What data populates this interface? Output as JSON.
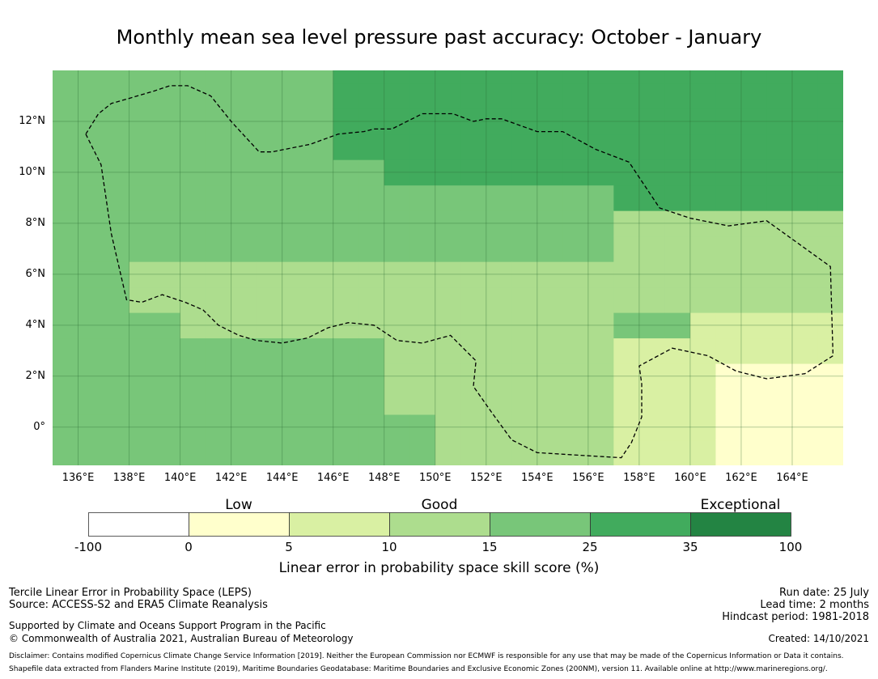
{
  "title": "Monthly mean sea level pressure past accuracy: October - January",
  "map": {
    "lon_range": [
      135,
      166
    ],
    "lat_range": [
      -1.5,
      14
    ],
    "grid_step": 1,
    "lat_ticks": [
      {
        "value": 12,
        "label": "12°N"
      },
      {
        "value": 10,
        "label": "10°N"
      },
      {
        "value": 8,
        "label": "8°N"
      },
      {
        "value": 6,
        "label": "6°N"
      },
      {
        "value": 4,
        "label": "4°N"
      },
      {
        "value": 2,
        "label": "2°N"
      },
      {
        "value": 0,
        "label": "0°"
      }
    ],
    "lon_ticks": [
      {
        "value": 136,
        "label": "136°E"
      },
      {
        "value": 138,
        "label": "138°E"
      },
      {
        "value": 140,
        "label": "140°E"
      },
      {
        "value": 142,
        "label": "142°E"
      },
      {
        "value": 144,
        "label": "144°E"
      },
      {
        "value": 146,
        "label": "146°E"
      },
      {
        "value": 148,
        "label": "148°E"
      },
      {
        "value": 150,
        "label": "150°E"
      },
      {
        "value": 152,
        "label": "152°E"
      },
      {
        "value": 154,
        "label": "154°E"
      },
      {
        "value": 156,
        "label": "156°E"
      },
      {
        "value": 158,
        "label": "158°E"
      },
      {
        "value": 160,
        "label": "160°E"
      },
      {
        "value": 162,
        "label": "162°E"
      },
      {
        "value": 164,
        "label": "164°E"
      }
    ],
    "colors": {
      "below_0": "#ffffff",
      "c0_5": "#ffffcc",
      "c5_10": "#d9f0a3",
      "c10_15": "#addd8e",
      "c15_25": "#78c679",
      "c25_35": "#41ab5d",
      "c35_100": "#238443"
    },
    "eez_boundary": [
      [
        136.3,
        11.5
      ],
      [
        136.9,
        10.3
      ],
      [
        137.3,
        7.6
      ],
      [
        137.9,
        5.0
      ],
      [
        138.5,
        4.9
      ],
      [
        139.3,
        5.2
      ],
      [
        140.2,
        4.9
      ],
      [
        140.9,
        4.6
      ],
      [
        141.5,
        4.0
      ],
      [
        142.3,
        3.6
      ],
      [
        143.0,
        3.4
      ],
      [
        144.0,
        3.3
      ],
      [
        145.0,
        3.5
      ],
      [
        145.8,
        3.9
      ],
      [
        146.6,
        4.1
      ],
      [
        147.6,
        4.0
      ],
      [
        148.5,
        3.4
      ],
      [
        149.5,
        3.3
      ],
      [
        150.6,
        3.6
      ],
      [
        151.2,
        3.0
      ],
      [
        151.6,
        2.6
      ],
      [
        151.5,
        1.6
      ],
      [
        152.2,
        0.6
      ],
      [
        153.0,
        -0.5
      ],
      [
        154.0,
        -1.0
      ],
      [
        155.6,
        -1.1
      ],
      [
        157.3,
        -1.2
      ],
      [
        157.7,
        -0.6
      ],
      [
        158.1,
        0.4
      ],
      [
        158.1,
        1.7
      ],
      [
        158.0,
        2.4
      ],
      [
        159.3,
        3.1
      ],
      [
        160.7,
        2.8
      ],
      [
        161.8,
        2.2
      ],
      [
        163.0,
        1.9
      ],
      [
        164.5,
        2.1
      ],
      [
        165.6,
        2.8
      ],
      [
        165.5,
        6.3
      ],
      [
        163.0,
        8.1
      ],
      [
        161.5,
        7.9
      ],
      [
        160.0,
        8.2
      ],
      [
        158.8,
        8.6
      ],
      [
        157.6,
        10.4
      ],
      [
        156.3,
        10.9
      ],
      [
        155.0,
        11.6
      ],
      [
        154.0,
        11.6
      ],
      [
        152.6,
        12.1
      ],
      [
        152.0,
        12.1
      ],
      [
        151.5,
        12.0
      ],
      [
        150.7,
        12.3
      ],
      [
        149.5,
        12.3
      ],
      [
        148.3,
        11.7
      ],
      [
        147.6,
        11.7
      ],
      [
        147.2,
        11.6
      ],
      [
        146.2,
        11.5
      ],
      [
        145.1,
        11.1
      ],
      [
        143.6,
        10.8
      ],
      [
        143.1,
        10.8
      ],
      [
        142.0,
        12.0
      ],
      [
        141.2,
        13.0
      ],
      [
        140.3,
        13.4
      ],
      [
        139.6,
        13.4
      ],
      [
        139.0,
        13.2
      ],
      [
        138.0,
        12.9
      ],
      [
        137.3,
        12.7
      ],
      [
        136.8,
        12.3
      ],
      [
        136.3,
        11.5
      ]
    ]
  },
  "colorbar": {
    "categories": [
      {
        "label": "Low",
        "lon_anchor": 1
      },
      {
        "label": "Good",
        "lon_anchor": 3
      },
      {
        "label": "Exceptional",
        "lon_anchor": 6
      }
    ],
    "tick_labels": [
      "-100",
      "0",
      "5",
      "10",
      "15",
      "25",
      "35",
      "100"
    ],
    "segment_colors": [
      "#ffffff",
      "#ffffcc",
      "#d9f0a3",
      "#addd8e",
      "#78c679",
      "#41ab5d",
      "#238443"
    ],
    "title": "Linear error in probability space skill score (%)"
  },
  "footer": {
    "left_line1": "Tercile Linear Error in Probability Space (LEPS)",
    "left_line2": "Source: ACCESS-S2 and ERA5 Climate Reanalysis",
    "left_line3": "Supported by Climate and Oceans Support Program in the Pacific",
    "left_line4": "© Commonwealth of Australia 2021, Australian Bureau of Meteorology",
    "right_line1": "Run date: 25 July",
    "right_line2": "Lead time: 2 months",
    "right_line3": "Hindcast period: 1981-2018",
    "right_line4": "Created: 14/10/2021",
    "disclaimer": "Disclaimer: Contains modified Copernicus Climate Change Service Information [2019]. Neither the European Commission nor ECMWF is responsible for any use that may be made of the Copernicus Information or Data it contains.",
    "shapefile": "Shapefile data extracted from Flanders Marine Institute (2019), Maritime Boundaries Geodatabase: Maritime Boundaries and Exclusive Economic Zones (200NM), version 11. Available online at http://www.marineregions.org/."
  }
}
